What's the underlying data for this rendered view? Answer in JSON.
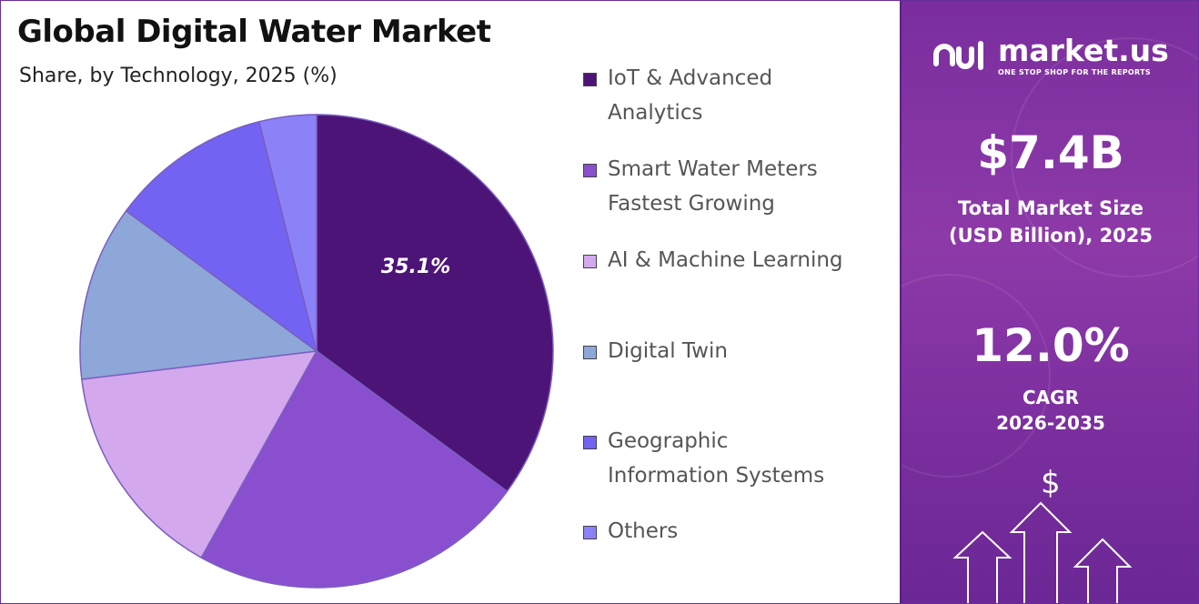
{
  "chart_data": {
    "type": "pie",
    "title": "Global Digital Water Market",
    "subtitle": "Share, by Technology, 2025 (%)",
    "categories": [
      "IoT & Advanced Analytics",
      "Smart Water Meters Fastest Growing",
      "AI & Machine Learning",
      "Digital Twin",
      "Geographic Information Systems",
      "Others"
    ],
    "values": [
      35.1,
      23.0,
      15.0,
      12.0,
      11.0,
      3.9
    ],
    "data_labels": [
      "35.1%",
      "",
      "",
      "",
      "",
      ""
    ],
    "colors": [
      "#4d1478",
      "#8a4fcf",
      "#d3a8ec",
      "#8ea7d9",
      "#7263f3",
      "#8b82f7"
    ],
    "legend_placement": "right"
  },
  "legend": [
    {
      "lines": [
        "IoT & Advanced",
        "Analytics"
      ],
      "color": "#4d1478"
    },
    {
      "lines": [
        "Smart Water Meters",
        "Fastest Growing"
      ],
      "color": "#8a4fcf"
    },
    {
      "lines": [
        "AI & Machine Learning"
      ],
      "color": "#d3a8ec"
    },
    {
      "lines": [
        "Digital Twin"
      ],
      "color": "#8ea7d9"
    },
    {
      "lines": [
        "Geographic",
        "Information Systems"
      ],
      "color": "#7263f3"
    },
    {
      "lines": [
        "Others"
      ],
      "color": "#8b82f7"
    }
  ],
  "side_panel": {
    "brand": "market.us",
    "tagline": "ONE STOP SHOP FOR THE REPORTS",
    "market_size_value": "$7.4B",
    "market_size_label_1": "Total Market Size",
    "market_size_label_2": "(USD Billion), 2025",
    "cagr_value": "12.0%",
    "cagr_label_1": "CAGR",
    "cagr_label_2": "2026-2035",
    "dollar_symbol": "$"
  }
}
